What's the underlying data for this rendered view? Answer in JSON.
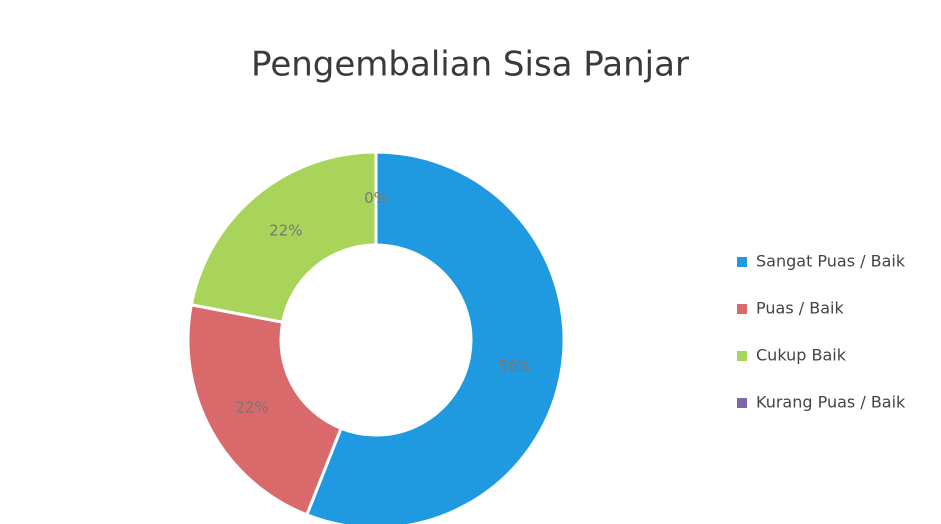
{
  "chart_data": {
    "type": "donut",
    "title": "Pengembalian Sisa Panjar",
    "categories": [
      "Sangat Puas / Baik",
      "Puas / Baik",
      "Cukup Baik",
      "Kurang Puas / Baik"
    ],
    "values": [
      56,
      22,
      22,
      0
    ],
    "value_labels": [
      "56%",
      "22%",
      "22%",
      "0%"
    ],
    "colors": [
      "#1f9ae0",
      "#d9696a",
      "#a8d45a",
      "#7f68a8"
    ],
    "legend": "right"
  }
}
